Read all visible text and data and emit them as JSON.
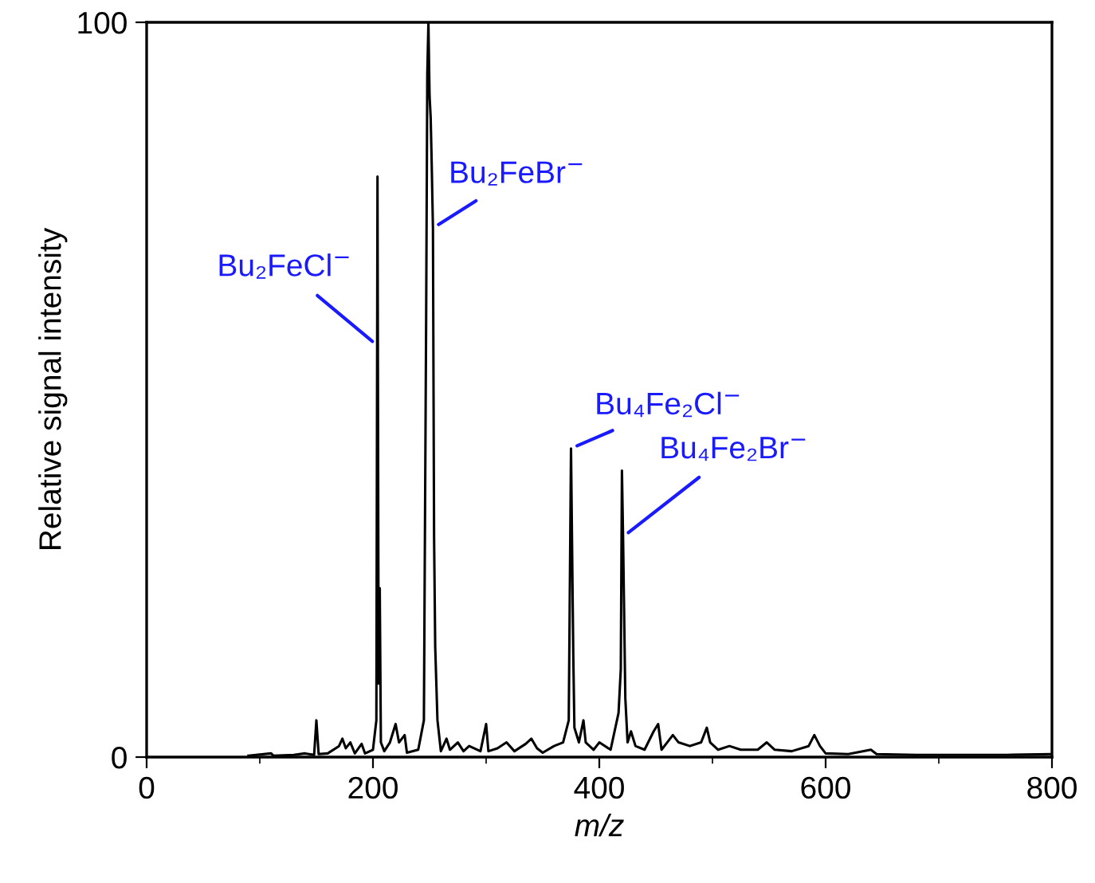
{
  "chart_data": {
    "type": "line",
    "xlabel": "m/z",
    "ylabel": "Relative signal intensity",
    "xlim": [
      0,
      800
    ],
    "xticks": [
      0,
      {
        "value": 100,
        "label": null
      },
      200,
      {
        "value": 300,
        "label": null
      },
      400,
      {
        "value": 500,
        "label": null
      },
      600,
      {
        "value": 700,
        "label": null
      },
      800
    ],
    "ylim": [
      0,
      100
    ],
    "yticks": [
      0,
      100
    ],
    "grid": false,
    "marker": "none",
    "line_style": "solid",
    "series": [
      {
        "color": "#000000",
        "x": [
          90,
          110,
          112,
          130,
          140,
          148,
          150,
          152,
          160,
          170,
          173,
          176,
          180,
          184,
          190,
          193,
          200,
          203,
          204,
          205,
          206,
          207,
          210,
          215,
          220,
          223,
          228,
          230,
          240,
          245,
          247,
          248,
          249,
          250,
          251,
          252,
          253,
          254,
          255,
          257,
          260,
          265,
          268,
          275,
          280,
          285,
          295,
          300,
          302,
          310,
          318,
          325,
          335,
          340,
          345,
          350,
          360,
          368,
          373,
          375,
          377,
          378,
          382,
          386,
          388,
          395,
          400,
          410,
          417,
          419,
          420,
          421,
          423,
          425,
          428,
          432,
          440,
          448,
          452,
          455,
          460,
          465,
          470,
          480,
          490,
          495,
          498,
          505,
          515,
          525,
          540,
          548,
          555,
          570,
          585,
          590,
          595,
          600,
          620,
          640,
          645,
          680,
          720,
          760,
          800
        ],
        "values": [
          0.2,
          0.5,
          0.2,
          0.3,
          0.5,
          0.3,
          5,
          0.4,
          0.5,
          1.5,
          2.5,
          1.2,
          2,
          0.5,
          1.8,
          0.5,
          1,
          5,
          79,
          10,
          23,
          2,
          0.8,
          2,
          4.5,
          2,
          3,
          0.6,
          1,
          5,
          60,
          93,
          100,
          90,
          87,
          80,
          72,
          30,
          15,
          5,
          0.8,
          2.5,
          1,
          2,
          0.8,
          1.5,
          0.8,
          4.5,
          0.8,
          1.2,
          2,
          0.8,
          1.8,
          2.5,
          1.2,
          0.6,
          1.5,
          2,
          5,
          42,
          14,
          4,
          2,
          5,
          2,
          1,
          2,
          1,
          6,
          12,
          39,
          30,
          8,
          2,
          3.5,
          1.5,
          1,
          3.5,
          4.5,
          1,
          2,
          3,
          2,
          1.5,
          2,
          4,
          2,
          1,
          1.5,
          1,
          1,
          2,
          1,
          0.8,
          1.5,
          3,
          1.5,
          0.5,
          0.4,
          1,
          0.4,
          0.3,
          0.3,
          0.3,
          0.4
        ]
      }
    ],
    "annotations": [
      {
        "text": "Bu₂FeCl$^{−}$",
        "x": 204,
        "y": 56
      },
      {
        "text": "Bu₂FeBr$^{−}$",
        "x": 253,
        "y": 72
      },
      {
        "text": "Bu₄Fe₂Cl$^{−}$",
        "x": 375,
        "y": 42
      },
      {
        "text": "Bu₄Fe₂Br$^{−}$",
        "x": 421,
        "y": 30
      }
    ]
  }
}
